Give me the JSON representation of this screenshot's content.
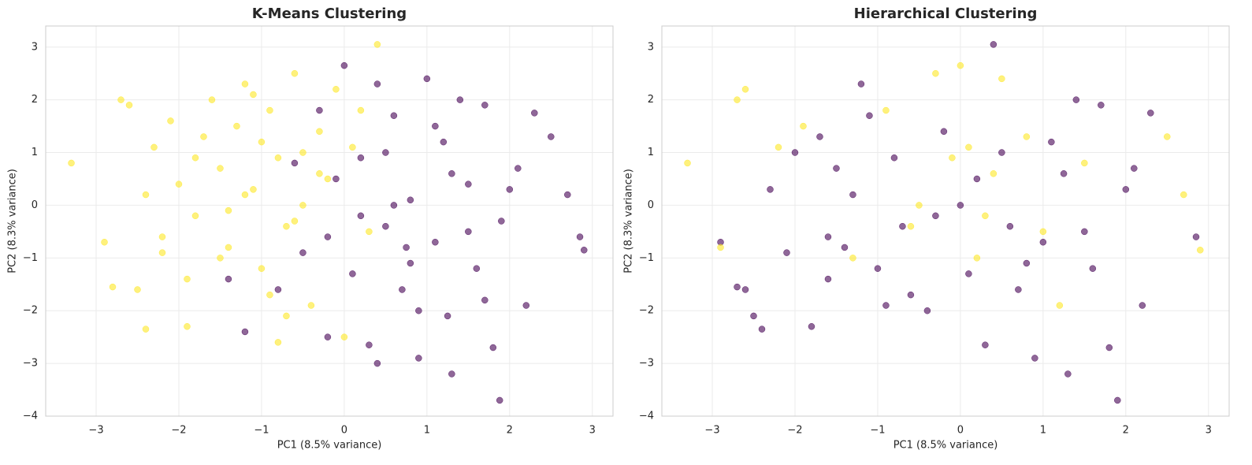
{
  "chart_data": [
    {
      "type": "scatter",
      "title": "K-Means Clustering",
      "xlabel": "PC1 (8.5% variance)",
      "ylabel": "PC2 (8.3% variance)",
      "xlim": [
        -3.61,
        3.25
      ],
      "ylim": [
        -4,
        3.4
      ],
      "xticks": [
        {
          "value": -3,
          "label": "−3"
        },
        {
          "value": -2,
          "label": "−2"
        },
        {
          "value": -1,
          "label": "−1"
        },
        0,
        1,
        2,
        3
      ],
      "yticks": [
        {
          "value": -4,
          "label": "−4"
        },
        {
          "value": -3,
          "label": "−3"
        },
        {
          "value": -2,
          "label": "−2"
        },
        {
          "value": -1,
          "label": "−1"
        },
        0,
        1,
        2,
        3
      ],
      "grid": true,
      "series": [
        {
          "color": "#fde725",
          "x": [
            -3.3,
            -2.9,
            -2.7,
            -2.6,
            -2.5,
            -2.4,
            -2.3,
            -2.2,
            -2.1,
            -2.0,
            -1.9,
            -1.8,
            -1.7,
            -1.6,
            -1.5,
            -1.4,
            -1.3,
            -1.2,
            -1.1,
            -1.0,
            -0.9,
            -0.8,
            -0.7,
            -0.6,
            -0.5,
            -0.4,
            -0.3,
            -0.2,
            -0.1,
            0.0,
            0.1,
            0.2,
            0.4,
            -2.8,
            -2.4,
            -1.9,
            -1.5,
            -1.2,
            -0.9,
            -0.6,
            -0.3,
            -1.0,
            -1.4,
            -0.7,
            -2.2,
            -1.1,
            -0.5,
            0.3,
            -1.8,
            -0.8
          ],
          "values": [
            0.8,
            -0.7,
            2.0,
            1.9,
            -1.6,
            0.2,
            1.1,
            -0.9,
            1.6,
            0.4,
            -1.4,
            -0.2,
            1.3,
            2.0,
            0.7,
            -0.8,
            1.5,
            2.3,
            0.3,
            -1.2,
            1.8,
            0.9,
            -0.4,
            2.5,
            1.0,
            -1.9,
            1.4,
            0.5,
            2.2,
            -2.5,
            1.1,
            1.8,
            3.05,
            -1.55,
            -2.35,
            -2.3,
            -1.0,
            0.2,
            -1.7,
            -0.3,
            0.6,
            1.2,
            -0.1,
            -2.1,
            -0.6,
            2.1,
            0.0,
            -0.5,
            0.9,
            -2.6
          ]
        },
        {
          "color": "#440154",
          "x": [
            2.9,
            2.85,
            2.7,
            2.5,
            2.3,
            2.2,
            2.1,
            1.9,
            1.8,
            1.7,
            1.6,
            1.5,
            1.4,
            1.3,
            1.2,
            1.1,
            1.0,
            0.9,
            0.8,
            0.7,
            0.6,
            0.5,
            0.4,
            0.3,
            0.2,
            0.1,
            0.0,
            -0.1,
            -0.2,
            -0.3,
            -0.5,
            -0.8,
            -1.2,
            -1.4,
            1.88,
            1.3,
            0.8,
            0.5,
            1.5,
            2.0,
            0.9,
            0.2,
            1.1,
            0.6,
            1.7,
            -0.2,
            0.4,
            1.25,
            0.75,
            -0.6
          ],
          "values": [
            -0.85,
            -0.6,
            0.2,
            1.3,
            1.75,
            -1.9,
            0.7,
            -0.3,
            -2.7,
            1.9,
            -1.2,
            0.4,
            2.0,
            -3.2,
            1.2,
            -0.7,
            2.4,
            -2.9,
            0.1,
            -1.6,
            1.7,
            -0.4,
            2.3,
            -2.65,
            0.9,
            -1.3,
            2.65,
            0.5,
            -2.5,
            1.8,
            -0.9,
            -1.6,
            -2.4,
            -1.4,
            -3.7,
            0.6,
            -1.1,
            1.0,
            -0.5,
            0.3,
            -2.0,
            -0.2,
            1.5,
            0.0,
            -1.8,
            -0.6,
            -3.0,
            -2.1,
            -0.8,
            0.8
          ]
        }
      ]
    },
    {
      "type": "scatter",
      "title": "Hierarchical Clustering",
      "xlabel": "PC1 (8.5% variance)",
      "ylabel": "PC2 (8.3% variance)",
      "xlim": [
        -3.61,
        3.25
      ],
      "ylim": [
        -4,
        3.4
      ],
      "xticks": [
        {
          "value": -3,
          "label": "−3"
        },
        {
          "value": -2,
          "label": "−2"
        },
        {
          "value": -1,
          "label": "−1"
        },
        0,
        1,
        2,
        3
      ],
      "yticks": [
        {
          "value": -4,
          "label": "−4"
        },
        {
          "value": -3,
          "label": "−3"
        },
        {
          "value": -2,
          "label": "−2"
        },
        {
          "value": -1,
          "label": "−1"
        },
        0,
        1,
        2,
        3
      ],
      "grid": true,
      "series": [
        {
          "color": "#440154",
          "x": [
            -2.9,
            -2.7,
            -2.6,
            -2.5,
            -2.4,
            -2.3,
            -2.1,
            -2.0,
            -1.8,
            -1.7,
            -1.6,
            -1.5,
            -1.4,
            -1.2,
            -1.1,
            -1.0,
            -0.8,
            -0.7,
            -0.4,
            -0.2,
            0.1,
            0.3,
            0.4,
            0.6,
            0.7,
            0.9,
            1.1,
            1.3,
            1.4,
            1.6,
            1.7,
            1.8,
            1.9,
            2.0,
            2.1,
            2.2,
            2.3,
            2.85,
            0.2,
            -0.6,
            0.8,
            1.25,
            -1.3,
            -0.9,
            0.5,
            1.5,
            -0.3,
            0.0,
            1.0,
            -1.6
          ],
          "values": [
            -0.7,
            -1.55,
            -1.6,
            -2.1,
            -2.35,
            0.3,
            -0.9,
            1.0,
            -2.3,
            1.3,
            -1.4,
            0.7,
            -0.8,
            2.3,
            1.7,
            -1.2,
            0.9,
            -0.4,
            -2.0,
            1.4,
            -1.3,
            -2.65,
            3.05,
            -0.4,
            -1.6,
            -2.9,
            1.2,
            -3.2,
            2.0,
            -1.2,
            1.9,
            -2.7,
            -3.7,
            0.3,
            0.7,
            -1.9,
            1.75,
            -0.6,
            0.5,
            -1.7,
            -1.1,
            0.6,
            0.2,
            -1.9,
            1.0,
            -0.5,
            -0.2,
            0.0,
            -0.7,
            -0.6
          ]
        },
        {
          "color": "#fde725",
          "x": [
            -3.3,
            -2.9,
            -2.7,
            -2.6,
            -2.2,
            -1.9,
            -1.3,
            -0.9,
            -0.6,
            -0.3,
            0.0,
            0.1,
            0.4,
            0.2,
            -0.1,
            0.5,
            0.8,
            1.0,
            1.5,
            2.5,
            2.7,
            2.9,
            -0.5,
            0.3,
            1.2
          ],
          "values": [
            0.8,
            -0.8,
            2.0,
            2.2,
            1.1,
            1.5,
            -1.0,
            1.8,
            -0.4,
            2.5,
            2.65,
            1.1,
            0.6,
            -1.0,
            0.9,
            2.4,
            1.3,
            -0.5,
            0.8,
            1.3,
            0.2,
            -0.85,
            0.0,
            -0.2,
            -1.9
          ]
        }
      ]
    }
  ]
}
